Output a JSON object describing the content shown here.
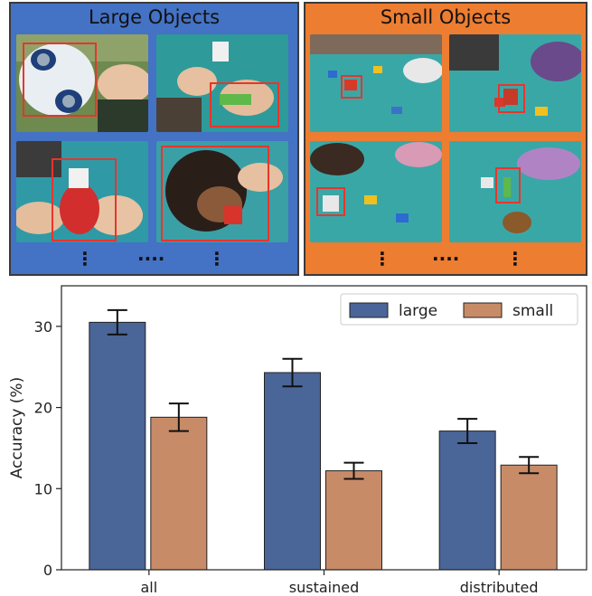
{
  "panels": {
    "large": {
      "title": "Large Objects",
      "color": "#4472c4"
    },
    "small": {
      "title": "Small Objects",
      "color": "#ed7d31"
    },
    "ellipsis_vertical": "⋮",
    "ellipsis_horizontal": "····"
  },
  "colors": {
    "large": "#4a6598",
    "small": "#c88b68",
    "box": "#e8352c"
  },
  "chart_data": {
    "type": "bar",
    "categories": [
      "all",
      "sustained",
      "distributed"
    ],
    "series": [
      {
        "name": "large",
        "values": [
          30.5,
          24.3,
          17.1
        ],
        "errors": [
          1.5,
          1.7,
          1.5
        ]
      },
      {
        "name": "small",
        "values": [
          18.8,
          12.2,
          12.9
        ],
        "errors": [
          1.7,
          1.0,
          1.0
        ]
      }
    ],
    "ylabel": "Accuracy (%)",
    "xlabel": "",
    "ylim": [
      0,
      35
    ],
    "yticks": [
      0,
      10,
      20,
      30
    ],
    "grid": false,
    "legend_position": "top-right"
  }
}
